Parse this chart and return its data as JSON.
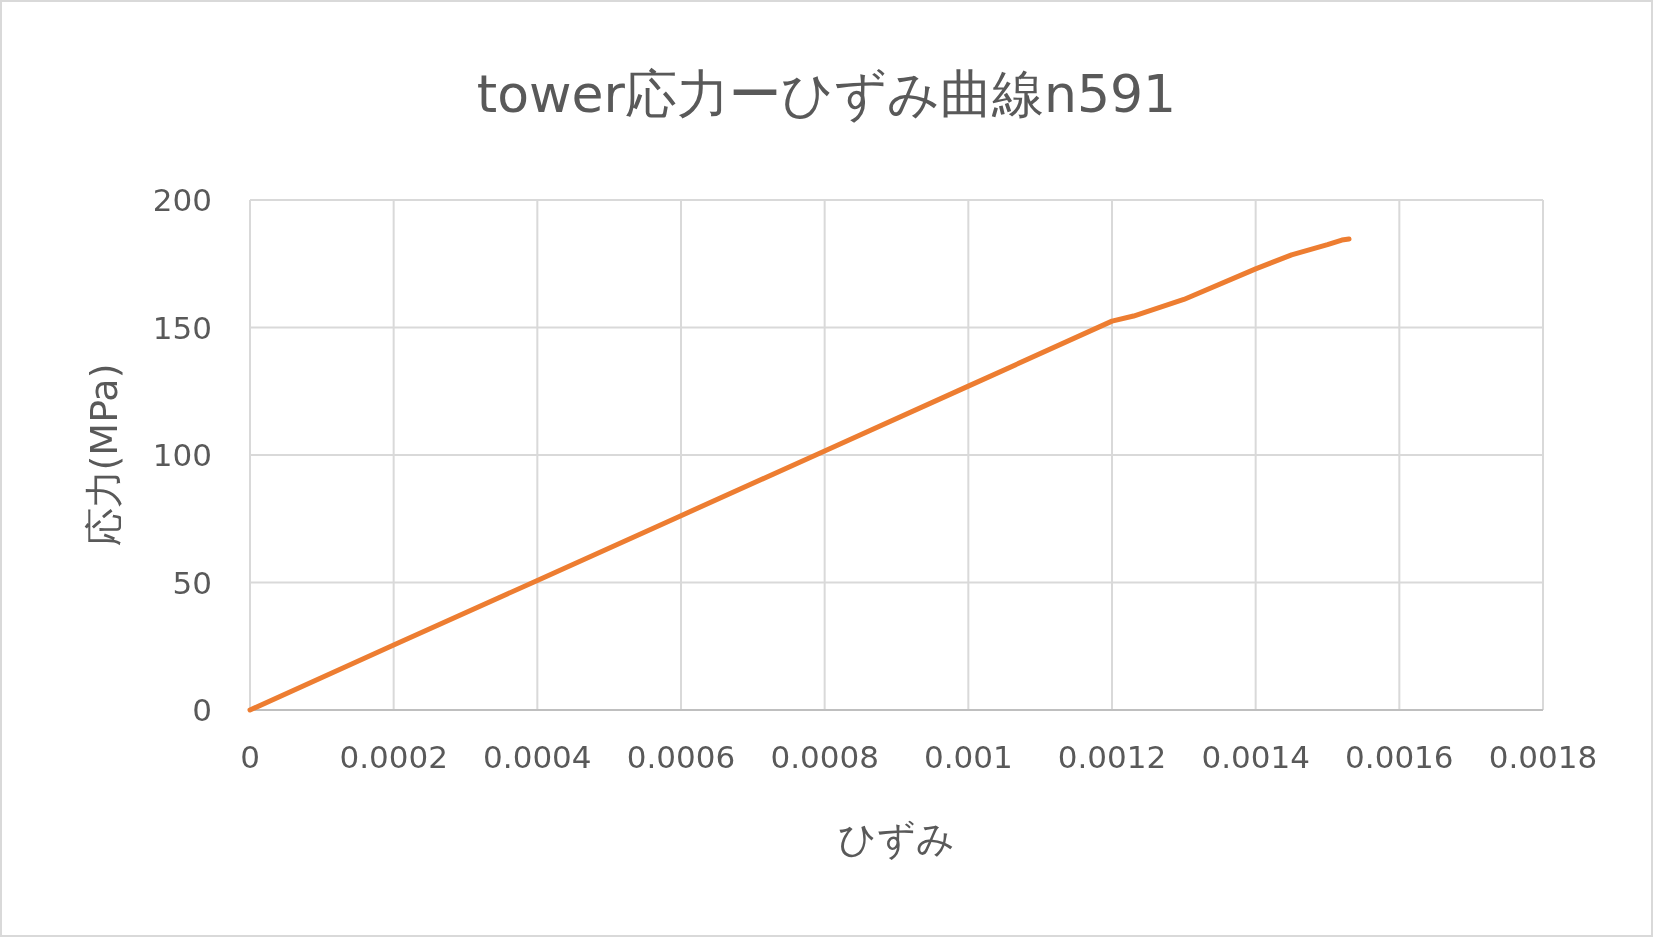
{
  "chart_data": {
    "type": "line",
    "title": "tower応力ーひずみ曲線n591",
    "xlabel": "ひずみ",
    "ylabel": "応力(MPa)",
    "xlim": [
      0,
      0.0018
    ],
    "xticks": [
      0,
      0.0002,
      0.0004,
      0.0006,
      0.0008,
      0.001,
      0.0012,
      0.0014,
      0.0016,
      0.0018
    ],
    "ylim": [
      0,
      200
    ],
    "yticks": [
      0,
      50,
      100,
      150,
      200
    ],
    "grid": true,
    "marker": "none",
    "line_style": "solid",
    "series": [
      {
        "color": "#ed7d31",
        "x": [
          0,
          0.0002,
          0.0004,
          0.0006,
          0.0008,
          0.001,
          0.0012,
          0.00123,
          0.0013,
          0.0014,
          0.00145,
          0.0015,
          0.00152,
          0.00153
        ],
        "values": [
          0,
          25.5,
          50.8,
          76.2,
          101.6,
          127,
          152.5,
          154.5,
          161,
          173,
          178.5,
          182.5,
          184.3,
          184.7
        ]
      }
    ]
  }
}
